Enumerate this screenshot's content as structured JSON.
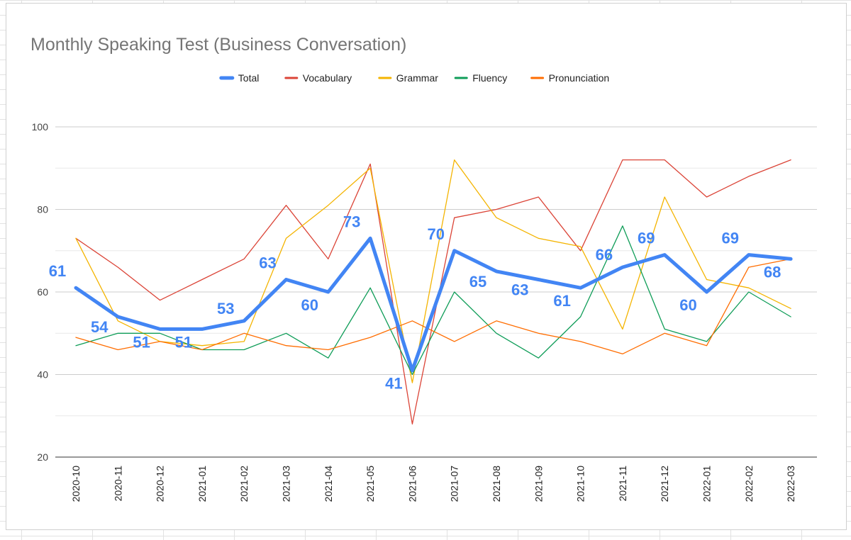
{
  "chart_data": {
    "type": "line",
    "title": "Monthly Speaking Test (Business Conversation)",
    "xlabel": "",
    "ylabel": "",
    "categories": [
      "2020-10",
      "2020-11",
      "2020-12",
      "2021-01",
      "2021-02",
      "2021-03",
      "2021-04",
      "2021-05",
      "2021-06",
      "2021-07",
      "2021-08",
      "2021-09",
      "2021-10",
      "2021-11",
      "2021-12",
      "2022-01",
      "2022-02",
      "2022-03"
    ],
    "ylim": [
      20,
      100
    ],
    "yticks": [
      20,
      40,
      60,
      80,
      100
    ],
    "grid": true,
    "legend_position": "top",
    "series": [
      {
        "name": "Total",
        "color": "#4285f4",
        "values": [
          61,
          54,
          51,
          51,
          53,
          63,
          60,
          73,
          41,
          70,
          65,
          63,
          61,
          66,
          69,
          60,
          69,
          68
        ],
        "data_labels": true
      },
      {
        "name": "Vocabulary",
        "color": "#db4437",
        "values": [
          73,
          66,
          58,
          63,
          68,
          81,
          68,
          91,
          28,
          78,
          80,
          83,
          70,
          92,
          92,
          83,
          88,
          92
        ]
      },
      {
        "name": "Grammar",
        "color": "#f4b400",
        "values": [
          73,
          53,
          48,
          47,
          48,
          73,
          81,
          90,
          38,
          92,
          78,
          73,
          71,
          51,
          83,
          63,
          61,
          56
        ]
      },
      {
        "name": "Fluency",
        "color": "#0f9d58",
        "values": [
          47,
          50,
          50,
          46,
          46,
          50,
          44,
          61,
          40,
          60,
          50,
          44,
          54,
          76,
          51,
          48,
          60,
          54
        ]
      },
      {
        "name": "Pronunciation",
        "color": "#ff6d01",
        "values": [
          49,
          46,
          48,
          46,
          50,
          47,
          46,
          49,
          53,
          48,
          53,
          50,
          48,
          45,
          50,
          47,
          66,
          68
        ]
      }
    ]
  }
}
